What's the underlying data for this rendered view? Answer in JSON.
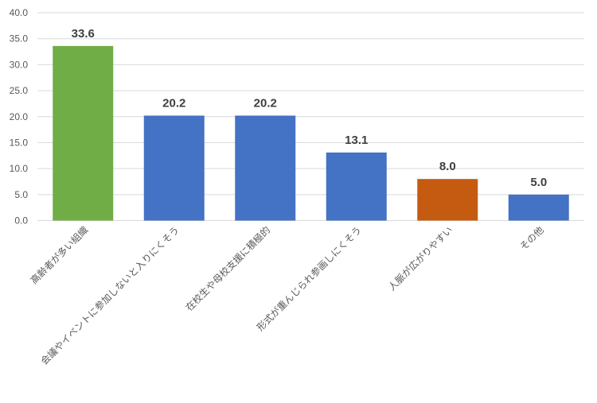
{
  "chart_data": {
    "type": "bar",
    "categories": [
      "高齢者が多い組織",
      "会議やイベントに参加しないと入りにくそう",
      "在校生や母校支援に積極的",
      "形式が重んじられ参画しにくそう",
      "人脈が広がりやすい",
      "その他"
    ],
    "values": [
      33.6,
      20.2,
      20.2,
      13.1,
      8.0,
      5.0
    ],
    "value_labels": [
      "33.6",
      "20.2",
      "20.2",
      "13.1",
      "8.0",
      "5.0"
    ],
    "colors": [
      "#70ad47",
      "#4472c4",
      "#4472c4",
      "#4472c4",
      "#c55a11",
      "#4472c4"
    ],
    "ylim": [
      0,
      40
    ],
    "y_ticks": [
      "0.0",
      "5.0",
      "10.0",
      "15.0",
      "20.0",
      "25.0",
      "30.0",
      "35.0",
      "40.0"
    ],
    "title": "",
    "xlabel": "",
    "ylabel": "",
    "grid": true,
    "legend": false
  }
}
